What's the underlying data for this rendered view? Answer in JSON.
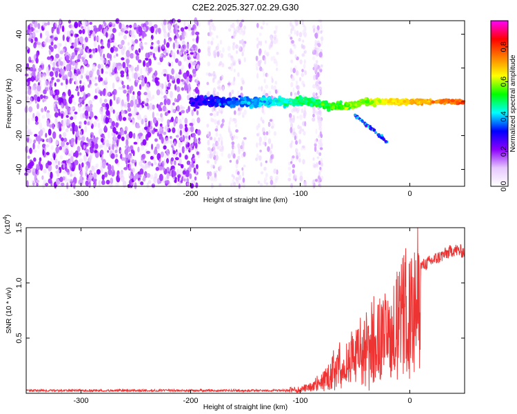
{
  "figure": {
    "title": "C2E2.2025.327.02.29.G30"
  },
  "chart_data": [
    {
      "type": "heatmap",
      "xlabel": "Height of straight line (km)",
      "ylabel": "Frequency (Hz)",
      "xlim": [
        -350,
        50
      ],
      "ylim": [
        -50,
        48
      ],
      "xticks": [
        -300,
        -200,
        -100,
        0
      ],
      "yticks": [
        -40,
        -20,
        0,
        20,
        40
      ],
      "colorbar": {
        "label": "Normalized spectral amplitude",
        "range": [
          0,
          0.95
        ],
        "ticks": [
          0.0,
          0.2,
          0.4,
          0.6,
          0.8
        ],
        "colormap": [
          "#ffffff",
          "#e6c8ff",
          "#8c00ff",
          "#0000ff",
          "#00ffff",
          "#00ff00",
          "#ffff00",
          "#ff8000",
          "#ff0000",
          "#ff00ff"
        ]
      },
      "features": {
        "noise_region_x": [
          -350,
          -200
        ],
        "signal_band_x": [
          -200,
          50
        ],
        "signal_band_center_hz": 0,
        "branch": {
          "x": [
            -50,
            -20
          ],
          "y": [
            -8,
            -24
          ]
        }
      }
    },
    {
      "type": "line",
      "xlabel": "Height of straight line (km)",
      "ylabel": "SNR (10 * v/v)",
      "y_scale_label": "(x10",
      "y_scale_exp": "4",
      "y_scale_close": ")",
      "xlim": [
        -350,
        50
      ],
      "ylim": [
        0,
        1.5
      ],
      "xticks": [
        -300,
        -200,
        -100,
        0
      ],
      "yticks": [
        0.5,
        1.0,
        1.5
      ],
      "ytick_labels": [
        "0.5",
        "1.0",
        "1.5"
      ],
      "series": [
        {
          "color": "#ee3333",
          "x": [
            -350,
            -300,
            -250,
            -200,
            -150,
            -120,
            -100,
            -90,
            -80,
            -70,
            -60,
            -50,
            -40,
            -30,
            -25,
            -20,
            -15,
            -10,
            -5,
            0,
            10,
            20,
            30,
            40,
            50
          ],
          "y": [
            0.02,
            0.02,
            0.02,
            0.025,
            0.03,
            0.04,
            0.05,
            0.08,
            0.15,
            0.3,
            0.4,
            0.5,
            0.55,
            0.7,
            0.75,
            0.7,
            0.8,
            0.9,
            1.0,
            1.05,
            1.15,
            1.2,
            1.25,
            1.3,
            1.28
          ]
        }
      ]
    }
  ]
}
